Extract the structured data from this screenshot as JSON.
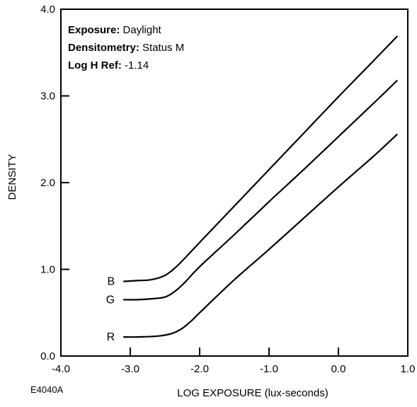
{
  "chart_data": {
    "type": "line",
    "title": "",
    "xlabel": "LOG EXPOSURE (lux-seconds)",
    "ylabel": "DENSITY",
    "xlim": [
      -4.0,
      1.0
    ],
    "ylim": [
      0.0,
      4.0
    ],
    "x_ticks": [
      "-4.0",
      "-3.0",
      "-2.0",
      "-1.0",
      "0.0",
      "1.0"
    ],
    "y_ticks": [
      "0.0",
      "1.0",
      "2.0",
      "3.0",
      "4.0"
    ],
    "grid": false,
    "figure_code": "E4040A",
    "annotations": [
      {
        "label": "Exposure:",
        "value": "Daylight"
      },
      {
        "label": "Densitometry:",
        "value": "Status M"
      },
      {
        "label": "Log H Ref:",
        "value": "-1.14"
      }
    ],
    "series": [
      {
        "name": "B",
        "points": [
          [
            -3.1,
            0.86
          ],
          [
            -2.9,
            0.87
          ],
          [
            -2.7,
            0.88
          ],
          [
            -2.5,
            0.93
          ],
          [
            -2.35,
            1.02
          ],
          [
            -2.2,
            1.14
          ],
          [
            -2.0,
            1.31
          ],
          [
            -1.5,
            1.73
          ],
          [
            -1.0,
            2.15
          ],
          [
            -0.5,
            2.57
          ],
          [
            0.0,
            2.99
          ],
          [
            0.5,
            3.4
          ],
          [
            0.85,
            3.69
          ]
        ]
      },
      {
        "name": "G",
        "points": [
          [
            -3.1,
            0.65
          ],
          [
            -2.9,
            0.65
          ],
          [
            -2.7,
            0.66
          ],
          [
            -2.5,
            0.68
          ],
          [
            -2.35,
            0.75
          ],
          [
            -2.2,
            0.86
          ],
          [
            -2.0,
            1.03
          ],
          [
            -1.5,
            1.4
          ],
          [
            -1.0,
            1.78
          ],
          [
            -0.5,
            2.15
          ],
          [
            0.0,
            2.53
          ],
          [
            0.5,
            2.91
          ],
          [
            0.85,
            3.18
          ]
        ]
      },
      {
        "name": "R",
        "points": [
          [
            -3.1,
            0.22
          ],
          [
            -2.9,
            0.22
          ],
          [
            -2.6,
            0.23
          ],
          [
            -2.4,
            0.26
          ],
          [
            -2.25,
            0.32
          ],
          [
            -2.1,
            0.42
          ],
          [
            -2.0,
            0.5
          ],
          [
            -1.5,
            0.88
          ],
          [
            -1.0,
            1.23
          ],
          [
            -0.5,
            1.59
          ],
          [
            0.0,
            1.95
          ],
          [
            0.5,
            2.3
          ],
          [
            0.85,
            2.56
          ]
        ]
      }
    ]
  }
}
